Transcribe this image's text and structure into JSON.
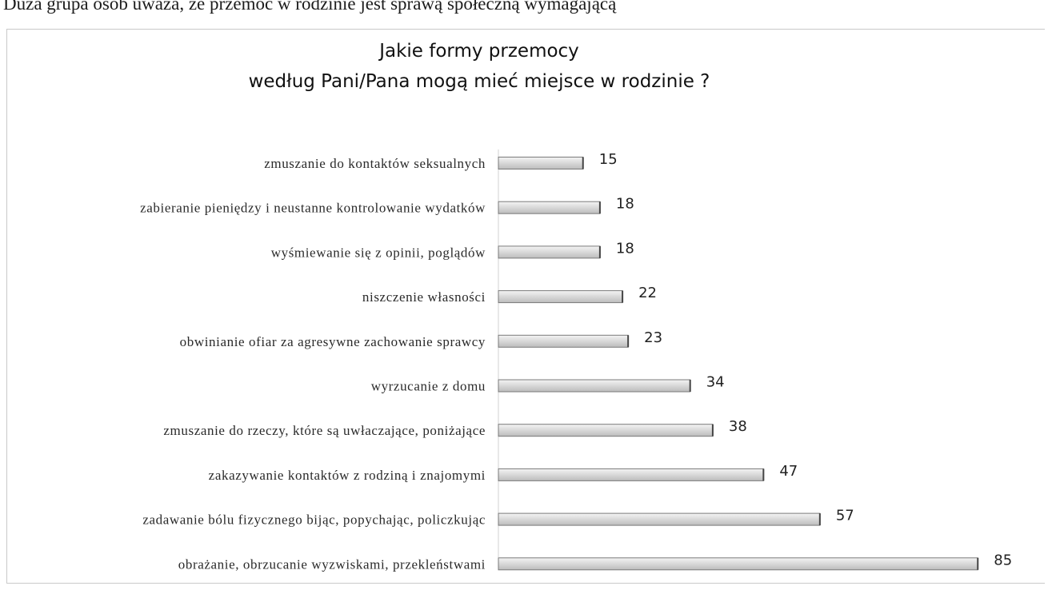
{
  "document": {
    "top_text": "Duża grupa osób uważa, że przemoc w rodzinie jest sprawą społeczną wymagającą"
  },
  "chart_data": {
    "type": "bar",
    "orientation": "horizontal",
    "title": "Jakie formy przemocy",
    "subtitle": "według Pani/Pana mogą mieć miejsce w rodzinie ?",
    "xlabel": "",
    "ylabel": "",
    "grid": false,
    "legend": "none",
    "xlim": [
      0,
      85
    ],
    "bar_color": "#dcdcdc",
    "bar_edge_color": "#7a7a7a",
    "categories": [
      "zmuszanie do kontaktów seksualnych",
      "zabieranie pieniędzy i neustanne kontrolowanie wydatków",
      "wyśmiewanie się z opinii, poglądów",
      "niszczenie własności",
      "obwinianie ofiar za agresywne zachowanie sprawcy",
      "wyrzucanie z domu",
      "zmuszanie do rzeczy, które są uwłaczające, poniżające",
      "zakazywanie kontaktów z rodziną i znajomymi",
      "zadawanie bólu fizycznego bijąc, popychając, policzkując",
      "obrażanie, obrzucanie wyzwiskami, przekleństwami"
    ],
    "values": [
      15,
      18,
      18,
      22,
      23,
      34,
      38,
      47,
      57,
      85
    ]
  }
}
